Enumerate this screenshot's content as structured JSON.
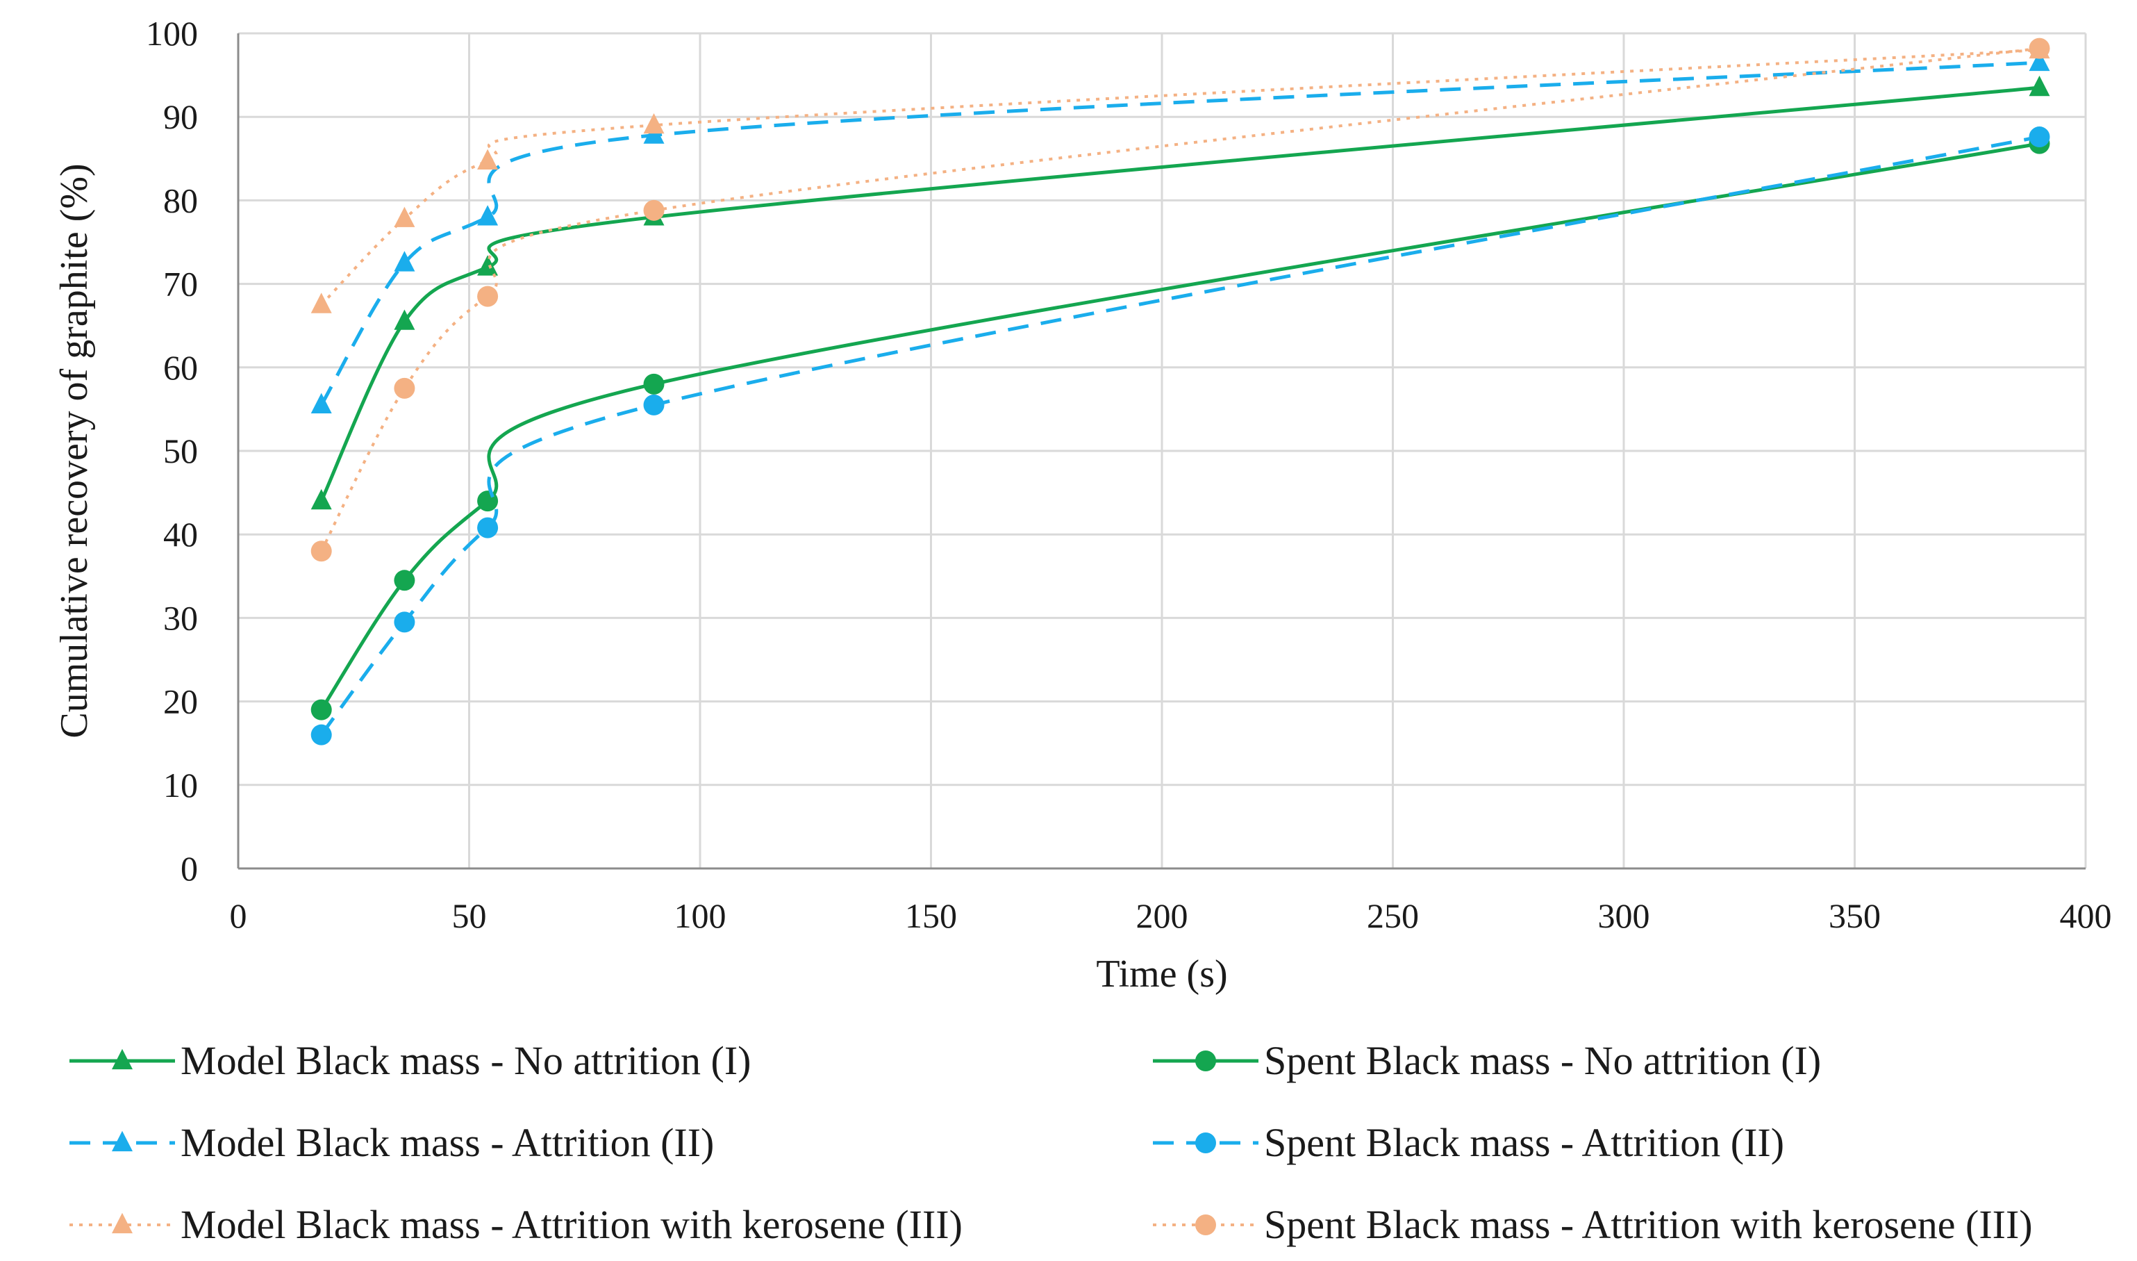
{
  "chart_data": {
    "type": "line",
    "title": "",
    "xlabel": "Time (s)",
    "ylabel": "Cumulative recovery of graphite (%)",
    "xlim": [
      0,
      400
    ],
    "ylim": [
      0,
      100
    ],
    "xticks": [
      "0",
      "50",
      "100",
      "150",
      "200",
      "250",
      "300",
      "350",
      "400"
    ],
    "yticks": [
      "0",
      "10",
      "20",
      "30",
      "40",
      "50",
      "60",
      "70",
      "80",
      "90",
      "100"
    ],
    "grid": true,
    "legend_position": "bottom",
    "x": [
      18,
      36,
      54,
      90,
      390
    ],
    "series": [
      {
        "name": "Model Black mass - No attrition (I)",
        "values": [
          44,
          65.5,
          72,
          78,
          93.5
        ],
        "color": "#14a650",
        "line_style": "solid",
        "marker": "triangle"
      },
      {
        "name": "Spent Black mass - No attrition (I)",
        "values": [
          19,
          34.5,
          44,
          58,
          86.8
        ],
        "color": "#14a650",
        "line_style": "solid",
        "marker": "circle"
      },
      {
        "name": "Model Black mass - Attrition (II)",
        "values": [
          55.5,
          72.5,
          78,
          87.8,
          96.5
        ],
        "color": "#1aadec",
        "line_style": "dashed",
        "marker": "triangle"
      },
      {
        "name": "Spent Black mass - Attrition (II)",
        "values": [
          16,
          29.5,
          40.8,
          55.5,
          87.6
        ],
        "color": "#1aadec",
        "line_style": "dashed",
        "marker": "circle"
      },
      {
        "name": "Model Black mass - Attrition with kerosene (III)",
        "values": [
          67.5,
          77.8,
          84.7,
          89,
          98
        ],
        "color": "#f4b183",
        "line_style": "dotted",
        "marker": "triangle"
      },
      {
        "name": "Spent Black mass - Attrition with kerosene (III)",
        "values": [
          38,
          57.5,
          68.5,
          78.8,
          98.2
        ],
        "color": "#f4b183",
        "line_style": "dotted",
        "marker": "circle"
      }
    ]
  }
}
